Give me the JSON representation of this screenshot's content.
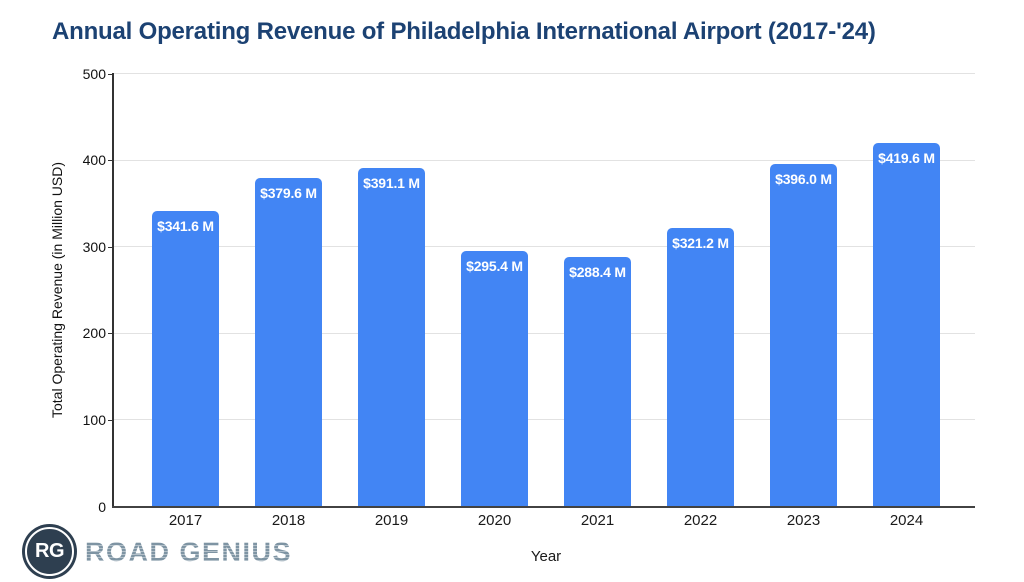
{
  "chart_data": {
    "type": "bar",
    "title": "Annual Operating Revenue of Philadelphia International Airport (2017-'24)",
    "xlabel": "Year",
    "ylabel": "Total Operating Revenue (in Million USD)",
    "categories": [
      "2017",
      "2018",
      "2019",
      "2020",
      "2021",
      "2022",
      "2023",
      "2024"
    ],
    "values": [
      341.6,
      379.6,
      391.1,
      295.4,
      288.4,
      321.2,
      396.0,
      419.6
    ],
    "bar_labels": [
      "$341.6 M",
      "$379.6 M",
      "$391.1 M",
      "$295.4 M",
      "$288.4 M",
      "$321.2 M",
      "$396.0 M",
      "$419.6 M"
    ],
    "ylim": [
      0,
      500
    ],
    "yticks": [
      0,
      100,
      200,
      300,
      400,
      500
    ],
    "grid": true,
    "legend": false,
    "bar_color": "#4285F4",
    "bar_label_color": "#FFFFFF"
  },
  "colors": {
    "title": "#1C4273",
    "axis_line": "#333333",
    "gridline": "#E2E2E2",
    "tick_label": "#111111"
  },
  "branding": {
    "logo_monogram": "RG",
    "logo_text": "ROAD GENIUS",
    "logo_circle_color": "#2E3F50",
    "logo_text_color": "#8FA3B0"
  }
}
